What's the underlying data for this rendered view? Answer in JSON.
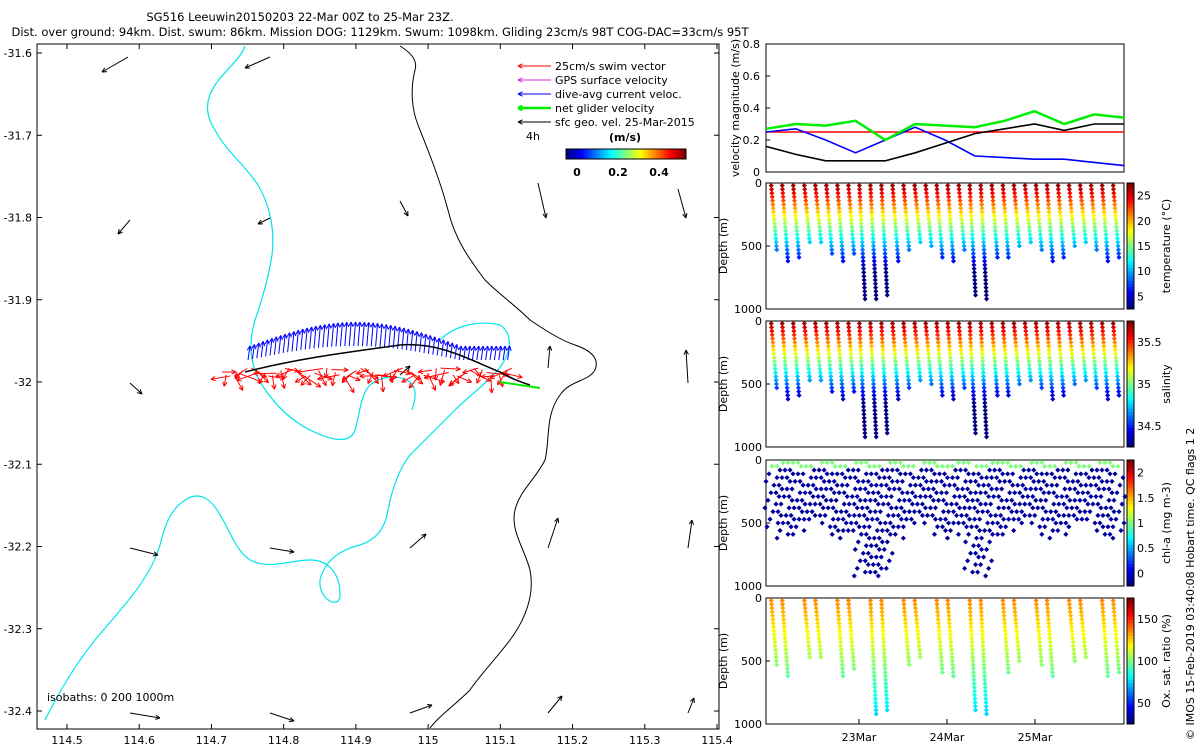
{
  "header": {
    "title": "SG516 Leeuwin20150203 22-Mar 00Z to 25-Mar 23Z.",
    "subtitle": "Dist. over ground: 94km. Dist. swum: 86km. Mission DOG: 1129km. Swum: 1098km. Gliding 23cm/s 98T COG-DAC=33cm/s 95T"
  },
  "side_note": "© IMOS 15-Feb-2019 03:40:08 Hobart time. QC flags 1  2",
  "map": {
    "legend": [
      {
        "label": "25cm/s swim vector",
        "color": "#ff0000"
      },
      {
        "label": "GPS surface velocity",
        "color": "#cc33cc"
      },
      {
        "label": "dive-avg current veloc.",
        "color": "#0000ff"
      },
      {
        "label": "net glider velocity",
        "color": "#00ee00"
      },
      {
        "label": "sfc geo. vel. 25-Mar-2015",
        "color": "#000000"
      }
    ],
    "time_tag": "4h",
    "colorbar_title": "(m/s)",
    "colorbar_ticks": [
      "0",
      "0.2",
      "0.4"
    ],
    "isobath_label": "isobaths: 0   200   1000m",
    "x_ticks": [
      "114.5",
      "114.6",
      "114.7",
      "114.8",
      "114.9",
      "115",
      "115.1",
      "115.2",
      "115.3",
      "115.4"
    ],
    "y_ticks": [
      "-31.6",
      "-31.7",
      "-31.8",
      "-31.9",
      "-32",
      "-32.1",
      "-32.2",
      "-32.3",
      "-32.4"
    ]
  },
  "chart_data": [
    {
      "type": "line",
      "ylabel": "velocity magnitude (m/s)",
      "ylim": [
        0,
        0.8
      ],
      "yticks": [
        "0",
        "0.2",
        "0.4",
        "0.6",
        "0.8"
      ],
      "series": [
        {
          "color": "#ff0000",
          "values": [
            0.25,
            0.25,
            0.25,
            0.25,
            0.25,
            0.25,
            0.25,
            0.25,
            0.25,
            0.25,
            0.25,
            0.25,
            0.25
          ]
        },
        {
          "color": "#0000ff",
          "values": [
            0.25,
            0.27,
            0.2,
            0.12,
            0.2,
            0.28,
            0.2,
            0.1,
            0.09,
            0.08,
            0.08,
            0.06,
            0.04
          ]
        },
        {
          "color": "#000000",
          "values": [
            0.16,
            0.11,
            0.07,
            0.07,
            0.07,
            0.12,
            0.18,
            0.24,
            0.27,
            0.3,
            0.26,
            0.3,
            0.3
          ]
        },
        {
          "color": "#00ee00",
          "values": [
            0.27,
            0.3,
            0.29,
            0.32,
            0.2,
            0.3,
            0.29,
            0.28,
            0.32,
            0.38,
            0.3,
            0.36,
            0.34
          ]
        }
      ]
    },
    {
      "type": "scatter",
      "variable": "temperature",
      "colorbar_label": "temperature (°C)",
      "colorbar_ticks": [
        "5",
        "10",
        "15",
        "20",
        "25"
      ],
      "ylabel": "Depth (m)",
      "ylim": [
        0,
        1000
      ],
      "yticks": [
        "0",
        "500",
        "1000"
      ]
    },
    {
      "type": "scatter",
      "variable": "salinity",
      "colorbar_label": "salinity",
      "colorbar_ticks": [
        "34.5",
        "35",
        "35.5"
      ],
      "ylabel": "Depth (m)",
      "ylim": [
        0,
        1000
      ],
      "yticks": [
        "0",
        "500",
        "1000"
      ]
    },
    {
      "type": "scatter",
      "variable": "chl-a",
      "colorbar_label": "chl-a (mg m-3)",
      "colorbar_ticks": [
        "0",
        "0.5",
        "1",
        "1.5",
        "2"
      ],
      "ylabel": "Depth (m)",
      "ylim": [
        0,
        1000
      ],
      "yticks": [
        "0",
        "500",
        "1000"
      ]
    },
    {
      "type": "scatter",
      "variable": "oxygen saturation",
      "colorbar_label": "Ox. sat. ratio (%)",
      "colorbar_ticks": [
        "50",
        "100",
        "150"
      ],
      "ylabel": "Depth (m)",
      "ylim": [
        0,
        1000
      ],
      "yticks": [
        "0",
        "500",
        "1000"
      ]
    }
  ],
  "time_axis": {
    "ticks": [
      "23Mar",
      "24Mar",
      "25Mar"
    ]
  }
}
